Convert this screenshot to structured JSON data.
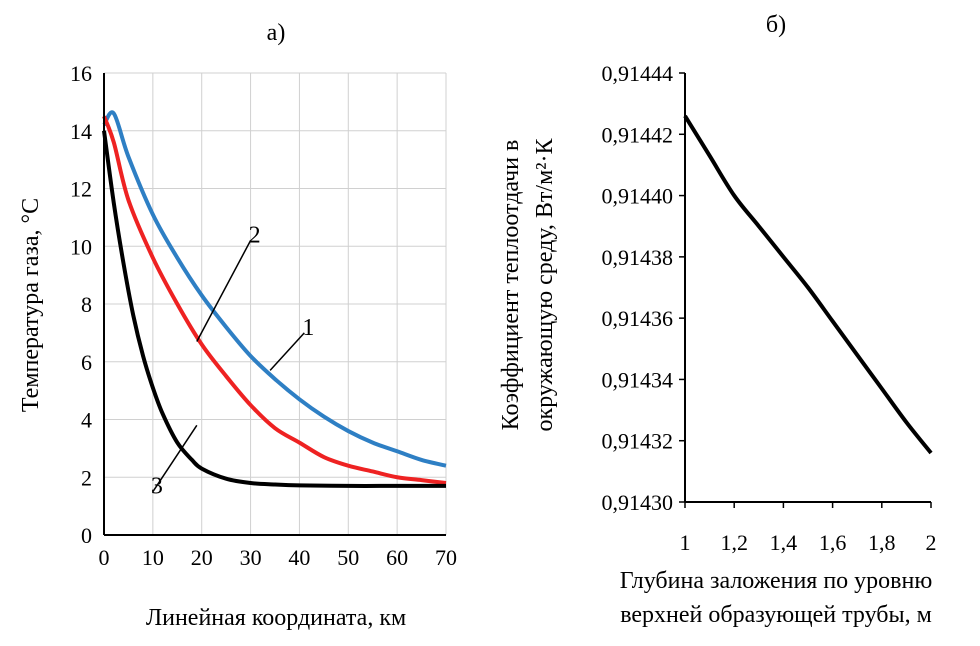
{
  "chart_data": [
    {
      "type": "line",
      "panel_label": "а)",
      "xlabel": "Линейная координата, км",
      "ylabel": "Температура газа, °С",
      "xlim": [
        0,
        70
      ],
      "ylim": [
        0,
        16
      ],
      "x_ticks": [
        "0",
        "10",
        "20",
        "30",
        "40",
        "50",
        "60",
        "70"
      ],
      "y_ticks": [
        "0",
        "2",
        "4",
        "6",
        "8",
        "10",
        "12",
        "14",
        "16"
      ],
      "grid": true,
      "series": [
        {
          "name": "1",
          "color": "#2e7fc4",
          "x": [
            0,
            2,
            5,
            10,
            15,
            20,
            25,
            30,
            35,
            40,
            45,
            50,
            55,
            60,
            65,
            70
          ],
          "y": [
            14.2,
            14.6,
            13.1,
            11.1,
            9.6,
            8.3,
            7.2,
            6.2,
            5.4,
            4.7,
            4.1,
            3.6,
            3.2,
            2.9,
            2.6,
            2.4
          ]
        },
        {
          "name": "2",
          "color": "#ee2222",
          "x": [
            0,
            2,
            5,
            10,
            15,
            20,
            25,
            30,
            35,
            40,
            45,
            50,
            55,
            60,
            65,
            70
          ],
          "y": [
            14.5,
            13.6,
            11.6,
            9.6,
            8.0,
            6.6,
            5.5,
            4.5,
            3.7,
            3.2,
            2.7,
            2.4,
            2.2,
            2.0,
            1.9,
            1.8
          ]
        },
        {
          "name": "3",
          "color": "#000000",
          "x": [
            0,
            2,
            4,
            6,
            8,
            10,
            12,
            15,
            18,
            20,
            25,
            30,
            35,
            40,
            50,
            60,
            70
          ],
          "y": [
            14.0,
            11.5,
            9.4,
            7.6,
            6.2,
            5.1,
            4.2,
            3.2,
            2.6,
            2.3,
            1.95,
            1.8,
            1.75,
            1.72,
            1.7,
            1.7,
            1.7
          ]
        }
      ],
      "annotations": [
        {
          "text": "1",
          "x": 41,
          "y": 7.0,
          "target_x": 34,
          "target_y": 5.7
        },
        {
          "text": "2",
          "x": 30,
          "y": 10.2,
          "target_x": 19,
          "target_y": 6.7
        },
        {
          "text": "3",
          "x": 10,
          "y": 1.5,
          "target_x": 19,
          "target_y": 3.8
        }
      ]
    },
    {
      "type": "line",
      "panel_label": "б)",
      "xlabel": [
        "Глубина заложения по уровню",
        "верхней образующей трубы, м"
      ],
      "ylabel": [
        "Коэффициент теплоотдачи в",
        "окружающую среду, Вт/м²·К"
      ],
      "xlim": [
        1,
        2
      ],
      "ylim": [
        0.9143,
        0.91444
      ],
      "x_ticks": [
        "1",
        "1,2",
        "1,4",
        "1,6",
        "1,8",
        "2"
      ],
      "y_ticks": [
        "0,91430",
        "0,91432",
        "0,91434",
        "0,91436",
        "0,91438",
        "0,91440",
        "0,91442",
        "0,91444"
      ],
      "grid": false,
      "series": [
        {
          "color": "#000000",
          "x": [
            1.0,
            1.1,
            1.2,
            1.3,
            1.4,
            1.5,
            1.6,
            1.7,
            1.8,
            1.9,
            2.0
          ],
          "y": [
            0.914426,
            0.914413,
            0.9144,
            0.91439,
            0.91438,
            0.91437,
            0.914359,
            0.914348,
            0.914337,
            0.914326,
            0.914316
          ]
        }
      ]
    }
  ]
}
